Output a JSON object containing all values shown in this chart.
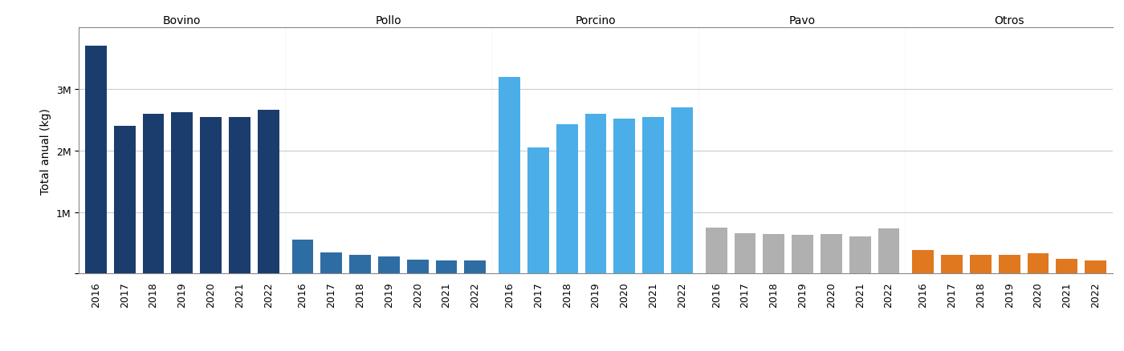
{
  "groups": [
    {
      "label": "Bovino",
      "color": "#1b3d6e",
      "values": [
        3700000,
        2400000,
        2600000,
        2620000,
        2540000,
        2540000,
        2660000
      ]
    },
    {
      "label": "Pollo",
      "color": "#2e6da4",
      "values": [
        550000,
        340000,
        300000,
        275000,
        230000,
        215000,
        215000
      ]
    },
    {
      "label": "Porcino",
      "color": "#4baee8",
      "values": [
        3200000,
        2050000,
        2430000,
        2600000,
        2520000,
        2540000,
        2700000
      ]
    },
    {
      "label": "Pavo",
      "color": "#b0b0b0",
      "values": [
        750000,
        650000,
        648000,
        625000,
        648000,
        610000,
        730000
      ]
    },
    {
      "label": "Otros",
      "color": "#e07820",
      "values": [
        380000,
        300000,
        300000,
        300000,
        330000,
        245000,
        210000
      ]
    }
  ],
  "years": [
    2016,
    2017,
    2018,
    2019,
    2020,
    2021,
    2022
  ],
  "ylabel": "Total anual (kg)",
  "yticks": [
    0,
    1000000,
    2000000,
    3000000
  ],
  "ytick_labels": [
    "",
    "1M",
    "2M",
    "3M"
  ],
  "ylim": [
    0,
    4000000
  ],
  "bg_color": "#ffffff",
  "grid_color": "#cccccc",
  "header_fontsize": 10,
  "ylabel_fontsize": 10,
  "tick_fontsize": 9,
  "bar_width": 0.75,
  "width_ratios": [
    7,
    7,
    7,
    7,
    7
  ],
  "separator_color": "#888888",
  "spine_color": "#888888"
}
